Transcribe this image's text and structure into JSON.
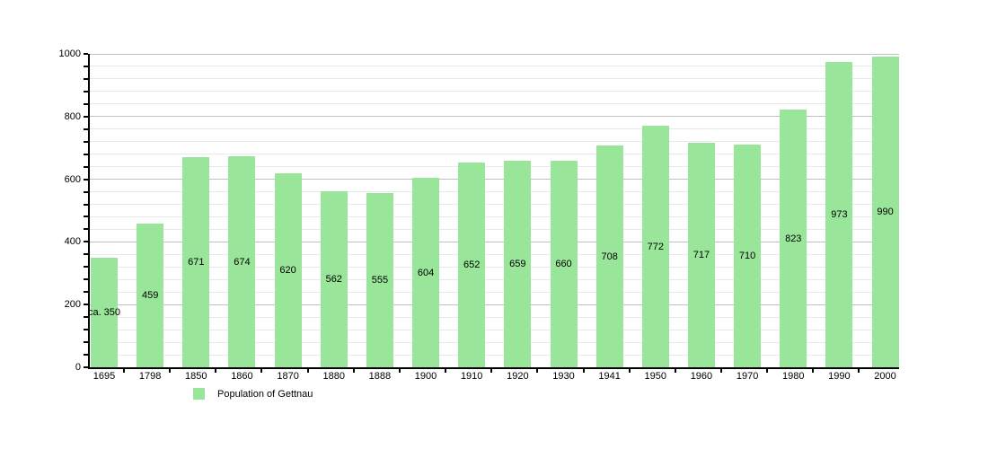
{
  "chart_data": {
    "type": "bar",
    "title": "",
    "xlabel": "",
    "ylabel": "",
    "categories": [
      "1695",
      "1798",
      "1850",
      "1860",
      "1870",
      "1880",
      "1888",
      "1900",
      "1910",
      "1920",
      "1930",
      "1941",
      "1950",
      "1960",
      "1970",
      "1980",
      "1990",
      "2000"
    ],
    "values": [
      350,
      459,
      671,
      674,
      620,
      562,
      555,
      604,
      652,
      659,
      660,
      708,
      772,
      717,
      710,
      823,
      973,
      990
    ],
    "bar_labels": [
      "ca. 350",
      "459",
      "671",
      "674",
      "620",
      "562",
      "555",
      "604",
      "652",
      "659",
      "660",
      "708",
      "772",
      "717",
      "710",
      "823",
      "973",
      "990"
    ],
    "ylim": [
      0,
      1000
    ],
    "ytick_major": 200,
    "ytick_minor": 40,
    "grid": true,
    "legend_position": "bottom-left",
    "legend_label": "Population of Gettnau"
  },
  "colors": {
    "bar": "#99e599",
    "grid_minor": "#e9e9e9",
    "grid_major": "#c0c0c0",
    "axis": "#000000",
    "text": "#000000",
    "background": "#ffffff"
  }
}
